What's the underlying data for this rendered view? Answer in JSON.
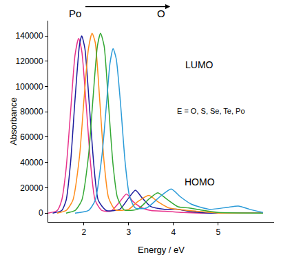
{
  "chart_data": {
    "type": "line",
    "x_label": "Energy / eV",
    "y_label": "Absorbance",
    "xlim": [
      1.2,
      6.25
    ],
    "xticks": [
      2,
      3,
      4,
      5
    ],
    "ylim": [
      -7000,
      152000
    ],
    "yticks": [
      0,
      20000,
      40000,
      60000,
      80000,
      100000,
      120000,
      140000
    ],
    "grid": false,
    "annotations": [
      "Po",
      "O",
      "LUMO",
      "E = O, S, Se, Te, Po",
      "HOMO"
    ],
    "series": [
      {
        "name": "Po",
        "color": "#e8338c",
        "x": [
          1.2,
          1.4,
          1.5,
          1.6,
          1.7,
          1.8,
          1.88,
          1.95,
          2.05,
          2.15,
          2.25,
          2.4,
          2.6,
          2.8,
          2.95,
          3.1,
          3.3,
          3.5,
          3.8,
          4.2,
          4.6,
          6.0
        ],
        "values": [
          0,
          2000,
          10000,
          35000,
          80000,
          125000,
          138000,
          128000,
          85000,
          38000,
          10000,
          2000,
          1500,
          9000,
          15000,
          9000,
          4000,
          2000,
          1500,
          500,
          0,
          0
        ]
      },
      {
        "name": "Te",
        "color": "#1c1c9e",
        "x": [
          1.3,
          1.5,
          1.6,
          1.7,
          1.8,
          1.9,
          1.95,
          2.02,
          2.12,
          2.22,
          2.32,
          2.5,
          2.8,
          3.0,
          3.15,
          3.3,
          3.5,
          3.8,
          4.1,
          4.4,
          4.8,
          6.0
        ],
        "values": [
          0,
          2000,
          10000,
          40000,
          90000,
          133000,
          140000,
          130000,
          85000,
          38000,
          10000,
          2000,
          3000,
          12000,
          18000,
          12000,
          5000,
          3000,
          3000,
          1000,
          0,
          0
        ]
      },
      {
        "name": "Se",
        "color": "#ff8c1a",
        "x": [
          1.4,
          1.6,
          1.75,
          1.9,
          2.0,
          2.1,
          2.18,
          2.25,
          2.35,
          2.45,
          2.55,
          2.7,
          3.0,
          3.2,
          3.45,
          3.65,
          3.9,
          4.2,
          4.5,
          5.0,
          6.0
        ],
        "values": [
          0,
          2000,
          10000,
          45000,
          90000,
          130000,
          142000,
          135000,
          90000,
          40000,
          12000,
          2500,
          3000,
          9000,
          14000,
          9000,
          4000,
          2500,
          1500,
          0,
          0
        ]
      },
      {
        "name": "S",
        "color": "#33a833",
        "x": [
          1.6,
          1.8,
          1.95,
          2.1,
          2.2,
          2.3,
          2.37,
          2.45,
          2.55,
          2.65,
          2.75,
          2.9,
          3.2,
          3.45,
          3.65,
          3.85,
          4.1,
          4.35,
          4.6,
          5.0,
          6.0
        ],
        "values": [
          0,
          2000,
          10000,
          45000,
          90000,
          132000,
          142000,
          132000,
          85000,
          38000,
          12000,
          2500,
          3000,
          11000,
          16000,
          11000,
          5000,
          4000,
          2500,
          500,
          0
        ]
      },
      {
        "name": "O",
        "color": "#2b9bd8",
        "x": [
          1.8,
          2.1,
          2.25,
          2.4,
          2.5,
          2.58,
          2.65,
          2.72,
          2.82,
          2.92,
          3.02,
          3.15,
          3.4,
          3.7,
          3.95,
          4.15,
          4.4,
          4.8,
          5.2,
          5.45,
          5.7,
          6.0
        ],
        "values": [
          0,
          2000,
          10000,
          45000,
          85000,
          118000,
          130000,
          122000,
          85000,
          40000,
          13000,
          4000,
          4000,
          13000,
          19000,
          13000,
          7000,
          3000,
          4500,
          5500,
          3000,
          500
        ]
      }
    ]
  }
}
